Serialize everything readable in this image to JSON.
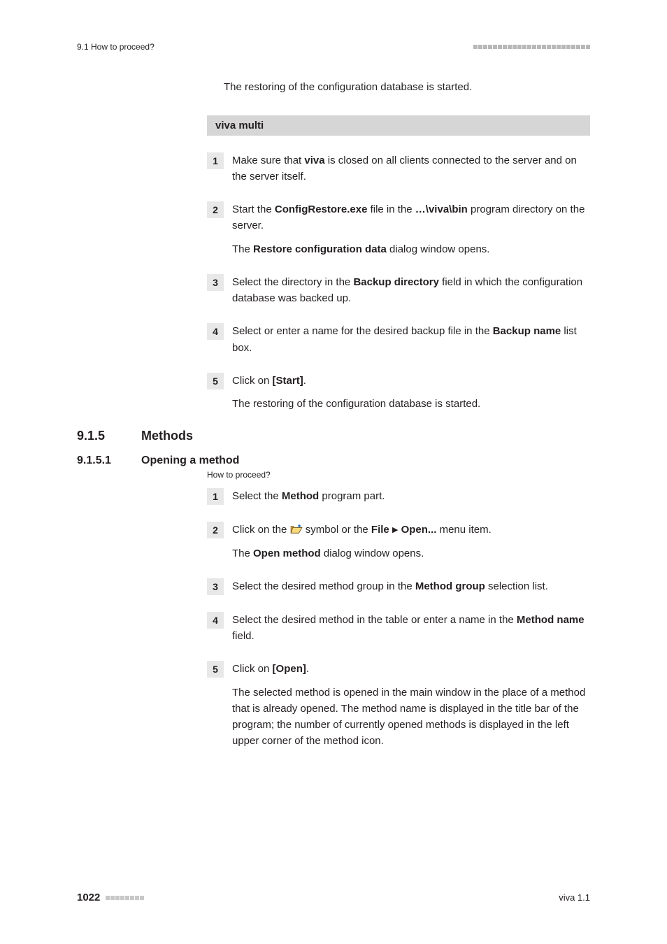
{
  "header": {
    "left": "9.1 How to proceed?",
    "dot_count": 24,
    "dot_color": "#b8b8b8"
  },
  "intro": "The restoring of the configuration database is started.",
  "section_bar": "viva multi",
  "steps_a": [
    {
      "num": "1",
      "html": "Make sure that <span class='strong'>viva</span> is closed on all clients connected to the server and on the server itself."
    },
    {
      "num": "2",
      "html": "Start the <span class='strong'>ConfigRestore.exe</span> file in the <span class='strong'>…\\viva\\bin</span> program directory on the server.",
      "after": "The <span class='strong'>Restore configuration data</span> dialog window opens."
    },
    {
      "num": "3",
      "html": "Select the directory in the <span class='strong'>Backup directory</span> field in which the configuration database was backed up."
    },
    {
      "num": "4",
      "html": "Select or enter a name for the desired backup file in the <span class='strong'>Backup name</span> list box."
    },
    {
      "num": "5",
      "html": "Click on <span class='strong'>[Start]</span>.",
      "after": "The restoring of the configuration database is started."
    }
  ],
  "h915": {
    "num": "9.1.5",
    "txt": "Methods"
  },
  "h9151": {
    "num": "9.1.5.1",
    "txt": "Opening a method"
  },
  "howto": "How to proceed?",
  "steps_b": [
    {
      "num": "1",
      "html": "Select the <span class='strong'>Method</span> program part."
    },
    {
      "num": "2",
      "html": "Click on the ##ICON## symbol or the <span class='strong'>File</span> <span class='tri'>▶</span> <span class='strong'>Open...</span> menu item.",
      "after": "The <span class='strong'>Open method</span> dialog window opens."
    },
    {
      "num": "3",
      "html": "Select the desired method group in the <span class='strong'>Method group</span> selection list."
    },
    {
      "num": "4",
      "html": "Select the desired method in the table or enter a name in the <span class='strong'>Method name</span> field."
    },
    {
      "num": "5",
      "html": "Click on <span class='strong'>[Open]</span>.",
      "after": "The selected method is opened in the main window in the place of a method that is already opened. The method name is displayed in the title bar of the program; the number of currently opened methods is displayed in the left upper corner of the method icon."
    }
  ],
  "footer": {
    "page": "1022",
    "dot_count": 8,
    "dot_color": "#c8c8c8",
    "right": "viva 1.1"
  },
  "icon_svg": "<svg class='folder-icon' viewBox='0 0 20 16'><path d='M1 3 L1 14 L14 14 L19 5 L6 5 L5 3 Z' fill='#f6c24a' stroke='#5a3d0a' stroke-width='0.8'/><path d='M4 5 L19 5 L14 14 L1 14 Z' fill='#f9d97a' stroke='#5a3d0a' stroke-width='0.8'/><path d='M13 2 C15 0 17 2 15 4' fill='none' stroke='#1766c9' stroke-width='1.6'/><path d='M15 4 L13 3 M15 4 L16 2' stroke='#1766c9' stroke-width='1.6' fill='none'/></svg>"
}
